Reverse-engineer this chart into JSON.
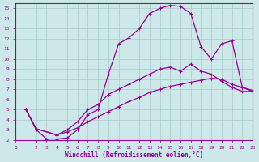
{
  "xlabel": "Windchill (Refroidissement éolien,°C)",
  "background_color": "#cce8e8",
  "grid_color": "#aacccc",
  "line_color": "#990099",
  "xlim": [
    0,
    23
  ],
  "ylim": [
    2,
    15.5
  ],
  "xticks": [
    0,
    2,
    3,
    4,
    5,
    6,
    7,
    8,
    9,
    10,
    11,
    12,
    13,
    14,
    15,
    16,
    17,
    18,
    19,
    20,
    21,
    22,
    23
  ],
  "yticks": [
    2,
    3,
    4,
    5,
    6,
    7,
    8,
    9,
    10,
    11,
    12,
    13,
    14,
    15
  ],
  "line1_x": [
    1,
    2,
    3,
    4,
    5,
    6,
    7,
    8,
    9,
    10,
    11,
    12,
    13,
    14,
    15,
    16,
    17,
    18,
    19,
    20,
    21,
    22,
    23
  ],
  "line1_y": [
    5.0,
    3.0,
    2.1,
    2.1,
    2.2,
    3.0,
    4.5,
    5.0,
    8.5,
    11.5,
    12.1,
    13.0,
    14.5,
    15.0,
    15.3,
    15.2,
    14.5,
    11.2,
    10.0,
    11.5,
    11.8,
    7.2,
    6.8
  ],
  "line2_x": [
    1,
    2,
    4,
    5,
    6,
    7,
    8,
    9,
    10,
    11,
    12,
    13,
    14,
    15,
    16,
    17,
    18,
    19,
    20,
    21,
    22,
    23
  ],
  "line2_y": [
    5.0,
    3.1,
    2.5,
    3.0,
    3.8,
    5.0,
    5.5,
    6.5,
    7.0,
    7.5,
    8.0,
    8.5,
    9.0,
    9.2,
    8.8,
    9.5,
    8.8,
    8.5,
    7.8,
    7.2,
    6.8,
    6.8
  ],
  "line3_x": [
    1,
    2,
    4,
    5,
    6,
    7,
    8,
    9,
    10,
    11,
    12,
    13,
    14,
    15,
    16,
    17,
    18,
    19,
    20,
    21,
    22,
    23
  ],
  "line3_y": [
    5.0,
    3.1,
    2.5,
    2.8,
    3.2,
    3.8,
    4.3,
    4.8,
    5.3,
    5.8,
    6.2,
    6.7,
    7.0,
    7.3,
    7.5,
    7.7,
    7.9,
    8.1,
    8.0,
    7.5,
    7.2,
    6.9
  ]
}
